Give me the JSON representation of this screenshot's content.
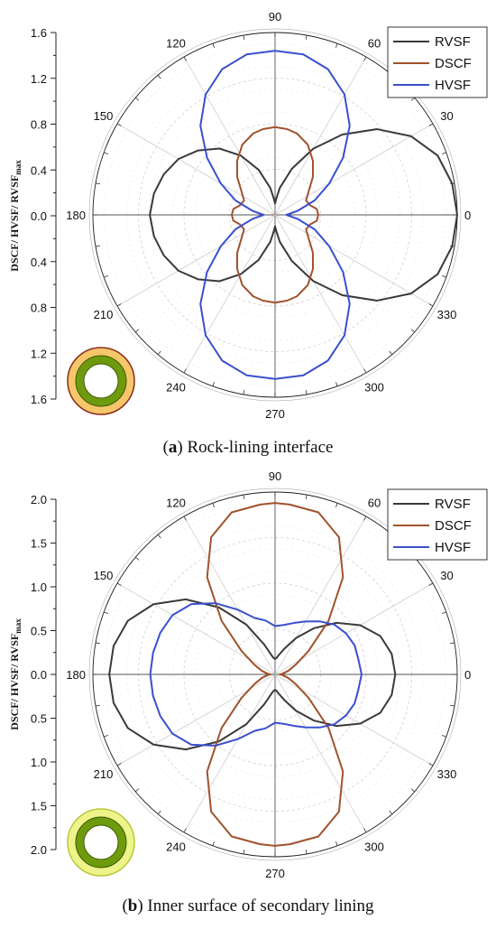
{
  "chart_data": [
    {
      "type": "polar",
      "caption_letter": "a",
      "caption_text": "Rock-lining interface",
      "ylabel": "DSCF/ HVSF/ RVSF",
      "ylabel_sub": "max",
      "rmax": 1.6,
      "radial_ticks": [
        "1.6",
        "1.2",
        "0.8",
        "0.4",
        "0.0",
        "0.4",
        "0.8",
        "1.2",
        "1.6"
      ],
      "angle_ticks": [
        "0",
        "30",
        "60",
        "90",
        "120",
        "150",
        "180",
        "210",
        "240",
        "270",
        "300",
        "330"
      ],
      "grid": true,
      "legend_position": "top-right",
      "series": [
        {
          "name": "RVSF",
          "color": "#3a3a3a",
          "angles": [
            0,
            10,
            20,
            30,
            40,
            50,
            60,
            70,
            80,
            85,
            90,
            95,
            100,
            110,
            120,
            130,
            140,
            150,
            160,
            170,
            180,
            190,
            200,
            210,
            220,
            230,
            240,
            250,
            260,
            265,
            270,
            275,
            280,
            290,
            300,
            310,
            320,
            330,
            340,
            350,
            360
          ],
          "r": [
            1.6,
            1.58,
            1.52,
            1.38,
            1.17,
            0.92,
            0.67,
            0.43,
            0.24,
            0.15,
            0.1,
            0.15,
            0.24,
            0.42,
            0.6,
            0.76,
            0.88,
            0.98,
            1.04,
            1.08,
            1.1,
            1.08,
            1.04,
            0.98,
            0.88,
            0.76,
            0.6,
            0.42,
            0.24,
            0.15,
            0.1,
            0.15,
            0.24,
            0.43,
            0.67,
            0.92,
            1.17,
            1.38,
            1.52,
            1.58,
            1.6
          ]
        },
        {
          "name": "DSCF",
          "color": "#a0522d",
          "angles": [
            0,
            8,
            15,
            25,
            35,
            45,
            55,
            65,
            75,
            82,
            90,
            98,
            105,
            115,
            125,
            135,
            145,
            155,
            165,
            172,
            180,
            188,
            195,
            205,
            215,
            225,
            235,
            245,
            255,
            262,
            270,
            278,
            285,
            295,
            305,
            315,
            325,
            335,
            345,
            352,
            360
          ],
          "r": [
            0.38,
            0.37,
            0.32,
            0.3,
            0.36,
            0.47,
            0.58,
            0.68,
            0.74,
            0.76,
            0.77,
            0.76,
            0.74,
            0.68,
            0.58,
            0.47,
            0.36,
            0.3,
            0.32,
            0.37,
            0.38,
            0.37,
            0.32,
            0.3,
            0.36,
            0.47,
            0.58,
            0.68,
            0.74,
            0.76,
            0.77,
            0.76,
            0.74,
            0.68,
            0.58,
            0.47,
            0.36,
            0.3,
            0.32,
            0.37,
            0.38
          ]
        },
        {
          "name": "HVSF",
          "color": "#3a4fcf",
          "angles": [
            0,
            10,
            20,
            30,
            40,
            50,
            60,
            70,
            80,
            90,
            100,
            110,
            120,
            130,
            140,
            150,
            160,
            170,
            180,
            190,
            200,
            210,
            220,
            230,
            240,
            250,
            260,
            270,
            280,
            290,
            300,
            310,
            320,
            330,
            340,
            350,
            360
          ],
          "r": [
            0.1,
            0.2,
            0.37,
            0.55,
            0.78,
            1.02,
            1.22,
            1.36,
            1.43,
            1.44,
            1.43,
            1.36,
            1.22,
            1.02,
            0.78,
            0.55,
            0.37,
            0.2,
            0.1,
            0.2,
            0.37,
            0.55,
            0.78,
            1.02,
            1.22,
            1.36,
            1.43,
            1.44,
            1.43,
            1.36,
            1.22,
            1.02,
            0.78,
            0.55,
            0.37,
            0.2,
            0.1
          ]
        }
      ]
    },
    {
      "type": "polar",
      "caption_letter": "b",
      "caption_text": "Inner surface of secondary lining",
      "ylabel": "DSCF/ HVSF/ RVSF",
      "ylabel_sub": "max",
      "rmax": 2.0,
      "radial_ticks": [
        "2.0",
        "1.5",
        "1.0",
        "0.5",
        "0.0",
        "0.5",
        "1.0",
        "1.5",
        "2.0"
      ],
      "angle_ticks": [
        "0",
        "30",
        "60",
        "90",
        "120",
        "150",
        "180",
        "210",
        "240",
        "270",
        "300",
        "330"
      ],
      "grid": true,
      "legend_position": "top-right",
      "series": [
        {
          "name": "RVSF",
          "color": "#3a3a3a",
          "angles": [
            0,
            10,
            20,
            30,
            40,
            50,
            60,
            70,
            80,
            85,
            90,
            95,
            100,
            110,
            120,
            130,
            140,
            150,
            160,
            170,
            180,
            190,
            200,
            210,
            220,
            230,
            240,
            250,
            260,
            265,
            270,
            275,
            280,
            290,
            300,
            310,
            320,
            330,
            340,
            350,
            360
          ],
          "r": [
            1.32,
            1.3,
            1.23,
            1.08,
            0.88,
            0.66,
            0.46,
            0.3,
            0.21,
            0.18,
            0.17,
            0.18,
            0.21,
            0.35,
            0.63,
            0.96,
            1.28,
            1.54,
            1.72,
            1.8,
            1.82,
            1.8,
            1.72,
            1.54,
            1.28,
            0.96,
            0.63,
            0.35,
            0.21,
            0.18,
            0.17,
            0.18,
            0.21,
            0.3,
            0.46,
            0.66,
            0.88,
            1.08,
            1.23,
            1.3,
            1.32
          ]
        },
        {
          "name": "DSCF",
          "color": "#a0522d",
          "angles": [
            0,
            5,
            15,
            25,
            35,
            45,
            55,
            65,
            75,
            85,
            90,
            95,
            105,
            115,
            125,
            135,
            145,
            155,
            165,
            175,
            180,
            185,
            195,
            205,
            215,
            225,
            235,
            245,
            255,
            265,
            270,
            275,
            285,
            295,
            305,
            315,
            325,
            335,
            345,
            355,
            360
          ],
          "r": [
            0.05,
            0.08,
            0.15,
            0.25,
            0.45,
            0.83,
            1.3,
            1.66,
            1.84,
            1.87,
            1.88,
            1.87,
            1.84,
            1.66,
            1.3,
            0.83,
            0.45,
            0.25,
            0.15,
            0.08,
            0.05,
            0.08,
            0.15,
            0.25,
            0.45,
            0.83,
            1.3,
            1.66,
            1.84,
            1.87,
            1.88,
            1.87,
            1.84,
            1.66,
            1.3,
            0.83,
            0.45,
            0.25,
            0.15,
            0.08,
            0.05
          ]
        },
        {
          "name": "HVSF",
          "color": "#3a4fcf",
          "angles": [
            0,
            10,
            20,
            30,
            40,
            50,
            60,
            70,
            80,
            90,
            100,
            110,
            120,
            130,
            140,
            150,
            160,
            170,
            180,
            190,
            200,
            210,
            220,
            230,
            240,
            250,
            260,
            270,
            280,
            290,
            300,
            310,
            320,
            330,
            340,
            350,
            360
          ],
          "r": [
            0.95,
            0.93,
            0.93,
            0.9,
            0.85,
            0.76,
            0.67,
            0.6,
            0.55,
            0.53,
            0.6,
            0.66,
            0.82,
            1.02,
            1.2,
            1.3,
            1.34,
            1.36,
            1.37,
            1.36,
            1.34,
            1.3,
            1.2,
            1.02,
            0.82,
            0.66,
            0.6,
            0.53,
            0.55,
            0.6,
            0.67,
            0.76,
            0.85,
            0.9,
            0.93,
            0.93,
            0.95
          ]
        }
      ]
    }
  ],
  "insets": [
    {
      "outer_color": "#f6c66b",
      "outer_stroke": "#8b2a1a",
      "ring_color": "#6e9a0e",
      "hole_color": "#ffffff"
    },
    {
      "outer_color": "#eef38a",
      "outer_stroke": "#b9c93c",
      "ring_color": "#6e9a0e",
      "hole_color": "#ffffff"
    }
  ]
}
